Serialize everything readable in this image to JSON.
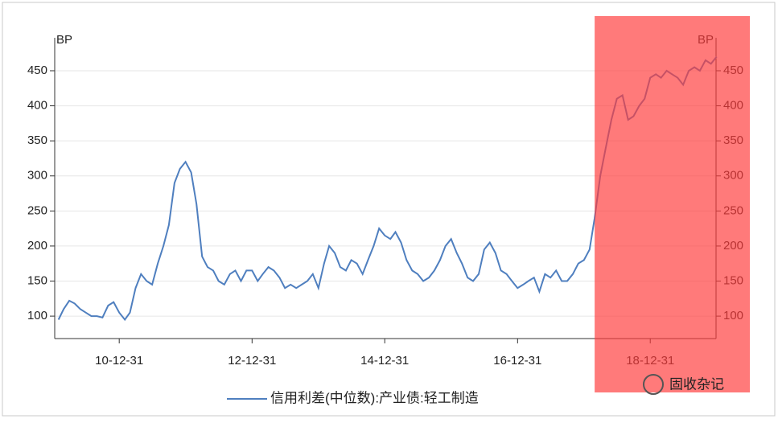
{
  "chart_data": {
    "type": "line",
    "y_label": "BP",
    "y2_label": "BP",
    "watermark": "固收杂记",
    "x": [
      "10-01-31",
      "10-02-28",
      "10-03-31",
      "10-04-30",
      "10-05-31",
      "10-06-30",
      "10-07-31",
      "10-08-31",
      "10-09-30",
      "10-10-31",
      "10-11-30",
      "10-12-31",
      "11-01-31",
      "11-02-28",
      "11-03-31",
      "11-04-30",
      "11-05-31",
      "11-06-30",
      "11-07-31",
      "11-08-31",
      "11-09-30",
      "11-10-31",
      "11-11-30",
      "11-12-31",
      "12-01-31",
      "12-02-29",
      "12-03-31",
      "12-04-30",
      "12-05-31",
      "12-06-30",
      "12-07-31",
      "12-08-31",
      "12-09-30",
      "12-10-31",
      "12-11-30",
      "12-12-31",
      "13-01-31",
      "13-02-28",
      "13-03-31",
      "13-04-30",
      "13-05-31",
      "13-06-30",
      "13-07-31",
      "13-08-31",
      "13-09-30",
      "13-10-31",
      "13-11-30",
      "13-12-31",
      "14-01-31",
      "14-02-28",
      "14-03-31",
      "14-04-30",
      "14-05-31",
      "14-06-30",
      "14-07-31",
      "14-08-31",
      "14-09-30",
      "14-10-31",
      "14-11-30",
      "14-12-31",
      "15-01-31",
      "15-02-28",
      "15-03-31",
      "15-04-30",
      "15-05-31",
      "15-06-30",
      "15-07-31",
      "15-08-31",
      "15-09-30",
      "15-10-31",
      "15-11-30",
      "15-12-31",
      "16-01-31",
      "16-02-29",
      "16-03-31",
      "16-04-30",
      "16-05-31",
      "16-06-30",
      "16-07-31",
      "16-08-31",
      "16-09-30",
      "16-10-31",
      "16-11-30",
      "16-12-31",
      "17-01-31",
      "17-02-28",
      "17-03-31",
      "17-04-30",
      "17-05-31",
      "17-06-30",
      "17-07-31",
      "17-08-31",
      "17-09-30",
      "17-10-31",
      "17-11-30",
      "17-12-31",
      "18-01-31",
      "18-02-28",
      "18-03-31",
      "18-04-30",
      "18-05-31",
      "18-06-30",
      "18-07-31",
      "18-08-31",
      "18-09-30",
      "18-10-31",
      "18-11-30",
      "18-12-31",
      "19-01-31",
      "19-02-28",
      "19-03-31",
      "19-04-30",
      "19-05-31",
      "19-06-30",
      "19-07-31",
      "19-08-31",
      "19-09-30",
      "19-10-31",
      "19-11-30",
      "19-12-31"
    ],
    "series": [
      {
        "name": "信用利差(中位数):产业债:轻工制造",
        "color": "#4f7fbf",
        "values": [
          95,
          110,
          122,
          118,
          110,
          105,
          100,
          100,
          98,
          115,
          120,
          105,
          95,
          105,
          140,
          160,
          150,
          145,
          175,
          200,
          230,
          290,
          310,
          320,
          305,
          260,
          185,
          170,
          165,
          150,
          145,
          160,
          165,
          150,
          165,
          165,
          150,
          160,
          170,
          165,
          155,
          140,
          145,
          140,
          145,
          150,
          160,
          140,
          175,
          200,
          190,
          170,
          165,
          180,
          175,
          160,
          180,
          200,
          225,
          215,
          210,
          220,
          205,
          180,
          165,
          160,
          150,
          155,
          165,
          180,
          200,
          210,
          190,
          175,
          155,
          150,
          160,
          195,
          205,
          190,
          165,
          160,
          150,
          140,
          145,
          150,
          155,
          135,
          160,
          155,
          165,
          150,
          150,
          160,
          175,
          180,
          195,
          240,
          300,
          340,
          380,
          410,
          415,
          380,
          385,
          400,
          410,
          440,
          445,
          440,
          450,
          445,
          440,
          430,
          450,
          455,
          450,
          465,
          460,
          470
        ]
      }
    ],
    "xlim": [
      "10-01-10",
      "19-12-28"
    ],
    "xticks": [
      "10-12-31",
      "12-12-31",
      "14-12-31",
      "16-12-31",
      "18-12-31"
    ],
    "ylim": [
      68,
      497
    ],
    "yticks": [
      100,
      150,
      200,
      250,
      300,
      350,
      400,
      450
    ],
    "y2lim": [
      68,
      497
    ],
    "y2ticks": [
      100,
      150,
      200,
      250,
      300,
      350,
      400,
      450
    ],
    "grid": true,
    "highlight": {
      "from": "18-02-28",
      "color": "#ff3b3b",
      "opacity": 0.68
    },
    "legend": "bottom"
  }
}
